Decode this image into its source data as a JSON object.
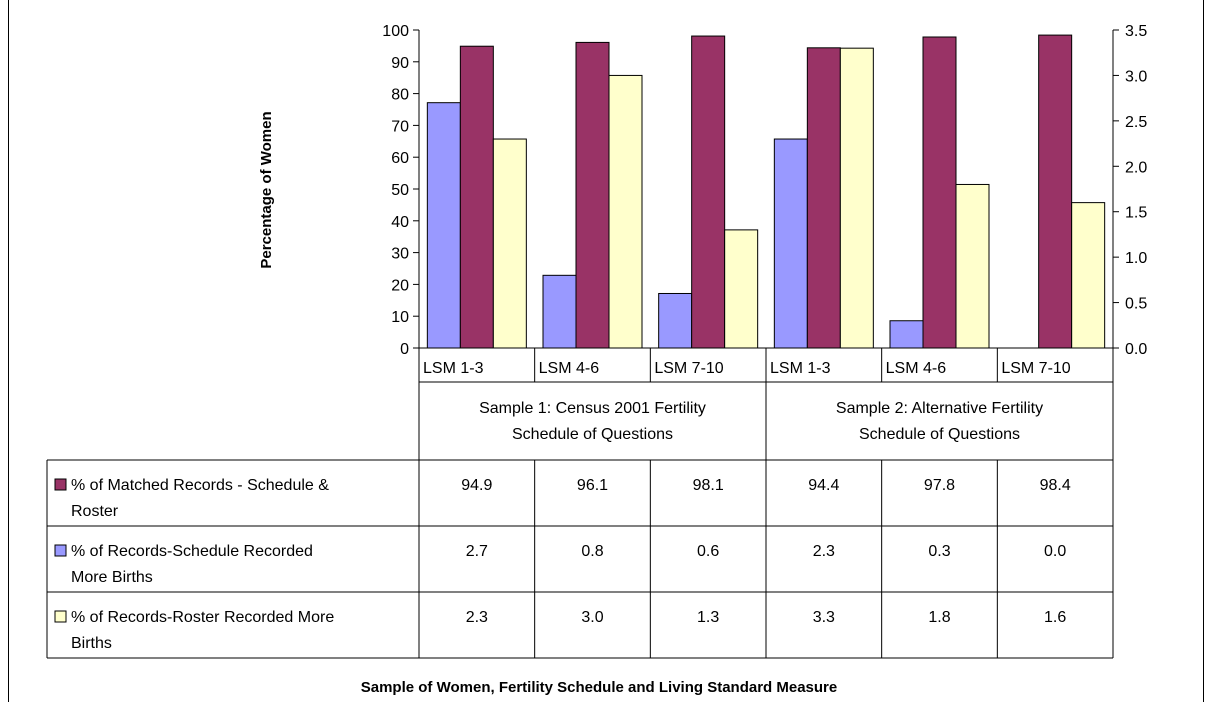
{
  "chart_data": {
    "type": "bar",
    "xlabel": "Sample of Women, Fertility Schedule and Living Standard Measure",
    "ylabel": "Percentage of Women",
    "ylim": [
      0,
      100
    ],
    "y2lim": [
      0,
      3.5
    ],
    "y_ticks": [
      "0",
      "10",
      "20",
      "30",
      "40",
      "50",
      "60",
      "70",
      "80",
      "90",
      "100"
    ],
    "y2_ticks": [
      "0.0",
      "0.5",
      "1.0",
      "1.5",
      "2.0",
      "2.5",
      "3.0",
      "3.5"
    ],
    "categories": [
      "LSM 1-3",
      "LSM 4-6",
      "LSM 7-10",
      "LSM 1-3",
      "LSM 4-6",
      "LSM 7-10"
    ],
    "groups": [
      {
        "label": "Sample 1: Census 2001 Fertility Schedule of Questions",
        "span": [
          0,
          3
        ],
        "lines": [
          "Sample 1: Census 2001 Fertility",
          "Schedule of Questions"
        ]
      },
      {
        "label": "Sample 2: Alternative Fertility Schedule of Questions",
        "span": [
          3,
          6
        ],
        "lines": [
          "Sample 2: Alternative Fertility",
          "Schedule of Questions"
        ]
      }
    ],
    "series": [
      {
        "name": "% of Records-Schedule Recorded More Births",
        "lines": [
          "% of Records-Schedule Recorded",
          "More Births"
        ],
        "axis": "right",
        "color": "#9999ff",
        "values": [
          2.7,
          0.8,
          0.6,
          2.3,
          0.3,
          0.0
        ],
        "labels": [
          "2.7",
          "0.8",
          "0.6",
          "2.3",
          "0.3",
          "0.0"
        ]
      },
      {
        "name": "% of Matched Records - Schedule & Roster",
        "lines": [
          "% of Matched Records - Schedule &",
          "Roster"
        ],
        "axis": "left",
        "color": "#993366",
        "values": [
          94.9,
          96.1,
          98.1,
          94.4,
          97.8,
          98.4
        ],
        "labels": [
          "94.9",
          "96.1",
          "98.1",
          "94.4",
          "97.8",
          "98.4"
        ]
      },
      {
        "name": "% of Records-Roster Recorded More Births",
        "lines": [
          "% of Records-Roster Recorded More",
          "Births"
        ],
        "axis": "right",
        "color": "#ffffcc",
        "values": [
          2.3,
          3.0,
          1.3,
          3.3,
          1.8,
          1.6
        ],
        "labels": [
          "2.3",
          "3.0",
          "1.3",
          "3.3",
          "1.8",
          "1.6"
        ]
      }
    ],
    "table_order": [
      1,
      0,
      2
    ],
    "grid": false
  }
}
